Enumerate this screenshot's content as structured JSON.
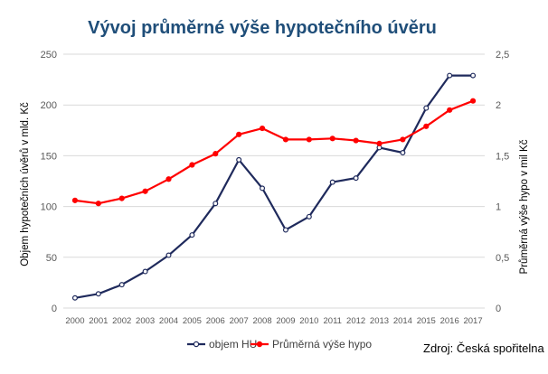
{
  "chart_data": {
    "type": "line",
    "title": "Vývoj průměrné výše hypotečního úvěru",
    "source": "Zdroj: Česká spořitelna",
    "x": [
      "2000",
      "2001",
      "2002",
      "2003",
      "2004",
      "2005",
      "2006",
      "2007",
      "2008",
      "2009",
      "2010",
      "2011",
      "2012",
      "2013",
      "2014",
      "2015",
      "2016",
      "2017"
    ],
    "ylabel": "Objem hypotečních úvěrů v mld. Kč",
    "ylabel_right": "Průměrná výše hypo v mil Kč",
    "ylim": [
      0,
      250
    ],
    "ylim_right": [
      0,
      2.5
    ],
    "yticks": [
      "0",
      "50",
      "100",
      "150",
      "200",
      "250"
    ],
    "yticks_right": [
      "0",
      "0,5",
      "1",
      "1,5",
      "2",
      "2,5"
    ],
    "grid": true,
    "legend_position": "bottom",
    "series": [
      {
        "name": "objem HU",
        "axis": "left",
        "color": "#1f2a5c",
        "marker": "open-circle",
        "values": [
          10,
          14,
          23,
          36,
          52,
          72,
          103,
          146,
          118,
          77,
          90,
          124,
          128,
          158,
          153,
          197,
          229,
          229
        ]
      },
      {
        "name": "Průměrná výše hypo",
        "axis": "right",
        "color": "#ff0000",
        "marker": "filled-circle",
        "values": [
          1.06,
          1.03,
          1.08,
          1.15,
          1.27,
          1.41,
          1.52,
          1.71,
          1.77,
          1.66,
          1.66,
          1.67,
          1.65,
          1.62,
          1.66,
          1.79,
          1.95,
          2.04
        ]
      }
    ]
  }
}
